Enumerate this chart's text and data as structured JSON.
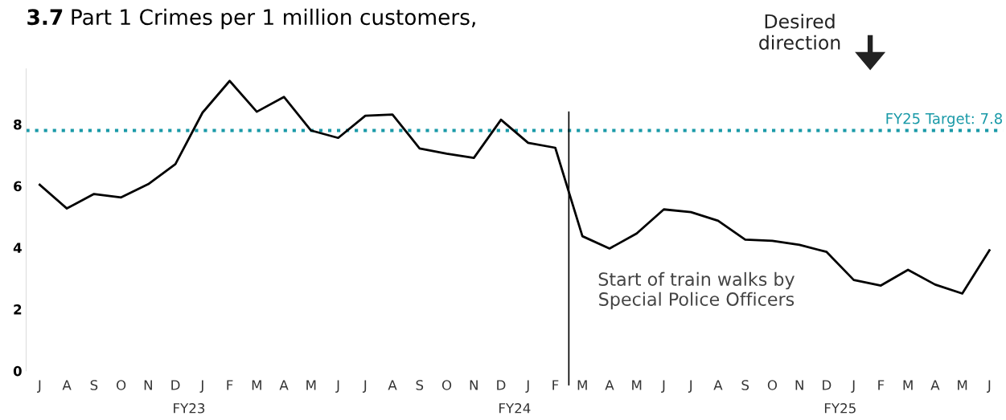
{
  "chart_data": {
    "type": "line",
    "title": "3.7 Part 1 Crimes per 1 million customers,",
    "categories": [
      "J",
      "A",
      "S",
      "O",
      "N",
      "D",
      "J",
      "F",
      "M",
      "A",
      "M",
      "J",
      "J",
      "A",
      "S",
      "O",
      "N",
      "D",
      "J",
      "F",
      "M",
      "A",
      "M",
      "J",
      "J",
      "A",
      "S",
      "O",
      "N",
      "D",
      "J",
      "F",
      "M",
      "A",
      "M",
      "J"
    ],
    "series": [
      {
        "color": "#000000",
        "values": [
          6.04,
          5.27,
          5.74,
          5.63,
          6.06,
          6.71,
          8.38,
          9.41,
          8.41,
          8.89,
          7.8,
          7.56,
          8.28,
          8.32,
          7.22,
          7.05,
          6.91,
          8.15,
          7.4,
          7.24,
          4.37,
          3.97,
          4.46,
          5.24,
          5.15,
          4.87,
          4.26,
          4.22,
          4.09,
          3.86,
          2.95,
          2.77,
          3.28,
          2.8,
          2.51,
          3.91
        ]
      }
    ],
    "ylim": [
      0,
      9.8
    ],
    "yticks": [
      0,
      2,
      4,
      6,
      8
    ],
    "grid": false,
    "legend": false,
    "marker": "none",
    "line_style": "solid",
    "ref_lines": [
      {
        "axis": "y",
        "value": 7.8,
        "label": "FY25 Target: 7.8",
        "color": "#1a9aa8",
        "line_style": "dotted"
      }
    ],
    "annotations": [
      "Desired\ndirection",
      "Start of train walks by\nSpecial Police Officers",
      "FY23",
      "FY24",
      "FY25"
    ]
  }
}
